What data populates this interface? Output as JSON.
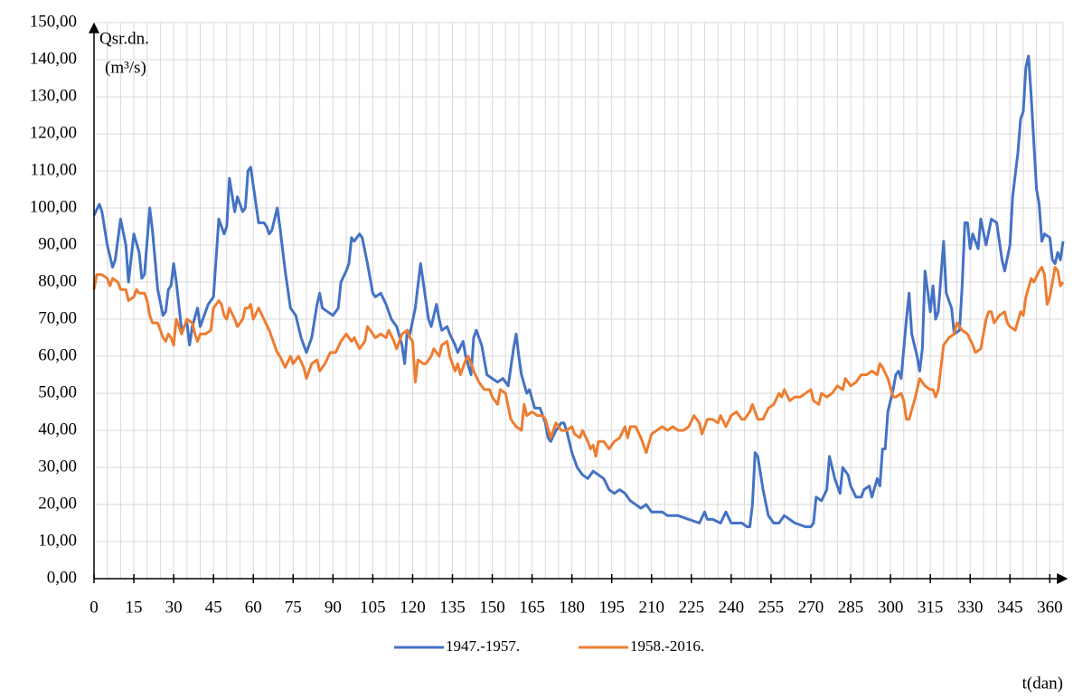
{
  "chart_data": {
    "type": "line",
    "y_label": "Qsr.dn.",
    "y_unit": "(m³/s)",
    "x_label": "t(dan)",
    "xlim": [
      0,
      365
    ],
    "ylim": [
      0,
      150
    ],
    "xticks": [
      0,
      15,
      30,
      45,
      60,
      75,
      90,
      105,
      120,
      135,
      150,
      165,
      180,
      195,
      210,
      225,
      240,
      255,
      270,
      285,
      300,
      315,
      330,
      345,
      360
    ],
    "xgrid": [
      5,
      10,
      15,
      20,
      25,
      30,
      35,
      40,
      45,
      50,
      55,
      60,
      65,
      70,
      75,
      80,
      85,
      90,
      95,
      100,
      105,
      110,
      115,
      120,
      125,
      130,
      135,
      140,
      145,
      150,
      155,
      160,
      165,
      170,
      175,
      180,
      185,
      190,
      195,
      200,
      205,
      210,
      215,
      220,
      225,
      230,
      235,
      240,
      245,
      250,
      255,
      260,
      265,
      270,
      275,
      280,
      285,
      290,
      295,
      300,
      305,
      310,
      315,
      320,
      325,
      330,
      335,
      340,
      345,
      350,
      355,
      360,
      365
    ],
    "yticks": [
      {
        "value": 0,
        "label": "0,00"
      },
      {
        "value": 10,
        "label": "10,00"
      },
      {
        "value": 20,
        "label": "20,00"
      },
      {
        "value": 30,
        "label": "30,00"
      },
      {
        "value": 40,
        "label": "40,00"
      },
      {
        "value": 50,
        "label": "50,00"
      },
      {
        "value": 60,
        "label": "60,00"
      },
      {
        "value": 70,
        "label": "70,00"
      },
      {
        "value": 80,
        "label": "80,00"
      },
      {
        "value": 90,
        "label": "90,00"
      },
      {
        "value": 100,
        "label": "100,00"
      },
      {
        "value": 110,
        "label": "110,00"
      },
      {
        "value": 120,
        "label": "120,00"
      },
      {
        "value": 130,
        "label": "130,00"
      },
      {
        "value": 140,
        "label": "140,00"
      },
      {
        "value": 150,
        "label": "150,00"
      }
    ],
    "grid": true,
    "legend": "bottom",
    "series": [
      {
        "name": "1947.-1957.",
        "color": "#4472c4",
        "x": [
          0,
          2,
          3,
          5,
          7,
          8,
          10,
          12,
          13,
          15,
          17,
          18,
          19,
          21,
          22,
          24,
          26,
          27,
          28,
          29,
          30,
          31,
          33,
          35,
          36,
          37,
          39,
          40,
          41,
          43,
          45,
          47,
          49,
          50,
          51,
          53,
          54,
          56,
          57,
          58,
          59,
          60,
          62,
          64,
          65,
          66,
          67,
          69,
          70,
          72,
          74,
          76,
          78,
          80,
          82,
          84,
          85,
          86,
          88,
          90,
          92,
          93,
          95,
          96,
          97,
          98,
          100,
          101,
          103,
          105,
          106,
          108,
          110,
          112,
          114,
          116,
          117,
          118,
          119,
          121,
          123,
          125,
          126,
          127,
          129,
          130,
          131,
          133,
          134,
          136,
          137,
          139,
          140,
          142,
          143,
          144,
          146,
          148,
          150,
          152,
          154,
          156,
          158,
          159,
          160,
          161,
          163,
          164,
          166,
          168,
          170,
          171,
          172,
          174,
          176,
          177,
          178,
          180,
          182,
          184,
          186,
          188,
          190,
          192,
          194,
          196,
          198,
          200,
          202,
          204,
          206,
          208,
          210,
          214,
          216,
          220,
          224,
          228,
          230,
          231,
          233,
          236,
          238,
          240,
          244,
          246,
          247,
          248,
          249,
          250,
          252,
          254,
          256,
          258,
          260,
          262,
          264,
          268,
          270,
          271,
          272,
          274,
          276,
          277,
          279,
          281,
          282,
          284,
          285,
          287,
          289,
          290,
          292,
          293,
          295,
          296,
          297,
          298,
          299,
          301,
          302,
          303,
          304,
          306,
          307,
          308,
          310,
          311,
          312,
          313,
          315,
          316,
          317,
          318,
          320,
          321,
          323,
          324,
          326,
          327,
          328,
          329,
          330,
          331,
          333,
          334,
          336,
          338,
          340,
          342,
          343,
          345,
          346,
          348,
          349,
          350,
          351,
          352,
          353,
          355,
          356,
          357,
          358,
          360,
          361,
          362,
          363,
          364,
          365
        ],
        "values": [
          98,
          101,
          99,
          90,
          84,
          86,
          97,
          90,
          80,
          93,
          88,
          81,
          82,
          100,
          94,
          78,
          71,
          72,
          78,
          79,
          85,
          80,
          67,
          69,
          63,
          68,
          73,
          68,
          70,
          74,
          76,
          97,
          93,
          95,
          108,
          99,
          103,
          99,
          100,
          110,
          111,
          106,
          96,
          96,
          95,
          93,
          94,
          100,
          95,
          83,
          73,
          71,
          65,
          61,
          65,
          74,
          77,
          73,
          72,
          71,
          73,
          80,
          83,
          85,
          92,
          91,
          93,
          92,
          85,
          77,
          76,
          77,
          74,
          70,
          68,
          63,
          58,
          67,
          66,
          73,
          85,
          75,
          70,
          68,
          74,
          70,
          67,
          68,
          66,
          63,
          61,
          64,
          60,
          55,
          65,
          67,
          63,
          55,
          54,
          53,
          54,
          52,
          62,
          66,
          60,
          55,
          50,
          51,
          46,
          46,
          42,
          38,
          37,
          40,
          42,
          42,
          40,
          34,
          30,
          28,
          27,
          29,
          28,
          27,
          24,
          23,
          24,
          23,
          21,
          20,
          19,
          20,
          18,
          18,
          17,
          17,
          16,
          15,
          18,
          16,
          16,
          15,
          18,
          15,
          15,
          14,
          14,
          20,
          34,
          33,
          24,
          17,
          15,
          15,
          17,
          16,
          15,
          14,
          14,
          15,
          22,
          21,
          24,
          33,
          27,
          23,
          30,
          28,
          25,
          22,
          22,
          24,
          25,
          22,
          27,
          25,
          35,
          35,
          45,
          51,
          55,
          56,
          54,
          70,
          77,
          66,
          60,
          56,
          62,
          83,
          72,
          79,
          70,
          72,
          91,
          77,
          73,
          66,
          67,
          79,
          96,
          96,
          89,
          93,
          89,
          97,
          90,
          97,
          96,
          86,
          83,
          90,
          103,
          115,
          124,
          126,
          138,
          141,
          130,
          105,
          101,
          91,
          93,
          92,
          86,
          85,
          88,
          86,
          91
        ]
      },
      {
        "name": "1958.-2016.",
        "color": "#ed7d31",
        "x": [
          0,
          1,
          3,
          5,
          6,
          7,
          9,
          10,
          12,
          13,
          15,
          16,
          17,
          19,
          20,
          21,
          22,
          24,
          25,
          26,
          27,
          28,
          29,
          30,
          31,
          32,
          33,
          35,
          37,
          38,
          39,
          40,
          42,
          44,
          45,
          47,
          48,
          49,
          50,
          51,
          53,
          54,
          56,
          57,
          58,
          59,
          60,
          62,
          64,
          66,
          67,
          69,
          70,
          72,
          74,
          75,
          77,
          79,
          80,
          82,
          84,
          85,
          87,
          89,
          91,
          93,
          95,
          97,
          98,
          100,
          102,
          103,
          104,
          106,
          108,
          110,
          111,
          113,
          114,
          116,
          118,
          119,
          120,
          121,
          122,
          124,
          125,
          127,
          128,
          130,
          131,
          133,
          134,
          135,
          136,
          137,
          138,
          140,
          141,
          143,
          145,
          147,
          149,
          150,
          152,
          153,
          155,
          157,
          159,
          161,
          162,
          163,
          165,
          167,
          169,
          170,
          172,
          174,
          176,
          178,
          180,
          181,
          183,
          184,
          186,
          187,
          188,
          189,
          190,
          192,
          194,
          196,
          198,
          200,
          201,
          202,
          204,
          206,
          207,
          208,
          210,
          212,
          214,
          216,
          218,
          220,
          222,
          224,
          226,
          228,
          229,
          231,
          233,
          235,
          236,
          238,
          240,
          242,
          244,
          245,
          247,
          248,
          250,
          252,
          254,
          256,
          258,
          259,
          260,
          262,
          264,
          266,
          268,
          270,
          271,
          273,
          274,
          276,
          278,
          280,
          282,
          283,
          285,
          287,
          289,
          291,
          293,
          295,
          296,
          297,
          299,
          301,
          302,
          304,
          305,
          306,
          307,
          309,
          311,
          313,
          315,
          316,
          317,
          318,
          320,
          322,
          324,
          325,
          327,
          329,
          331,
          332,
          334,
          336,
          337,
          338,
          339,
          341,
          343,
          344,
          345,
          347,
          349,
          350,
          351,
          353,
          354,
          356,
          357,
          358,
          359,
          360,
          362,
          363,
          364,
          365
        ],
        "values": [
          78,
          82,
          82,
          81,
          79,
          81,
          80,
          78,
          78,
          75,
          76,
          78,
          77,
          77,
          75,
          71,
          69,
          69,
          67,
          65,
          64,
          66,
          65,
          63,
          70,
          68,
          66,
          70,
          69,
          66,
          64,
          66,
          66,
          67,
          73,
          75,
          74,
          71,
          70,
          73,
          70,
          68,
          70,
          73,
          73,
          74,
          70,
          73,
          70,
          67,
          65,
          61,
          60,
          57,
          60,
          58,
          60,
          57,
          54,
          58,
          59,
          56,
          58,
          61,
          61,
          64,
          66,
          64,
          65,
          62,
          64,
          68,
          67,
          65,
          66,
          65,
          67,
          64,
          62,
          66,
          67,
          65,
          64,
          53,
          59,
          58,
          58,
          60,
          62,
          60,
          63,
          64,
          60,
          58,
          56,
          58,
          55,
          59,
          60,
          56,
          53,
          51,
          51,
          49,
          47,
          51,
          50,
          43,
          41,
          40,
          47,
          44,
          45,
          44,
          44,
          43,
          38,
          42,
          40,
          40,
          41,
          39,
          38,
          40,
          37,
          35,
          36,
          33,
          37,
          37,
          35,
          37,
          38,
          41,
          38,
          41,
          41,
          38,
          36,
          34,
          39,
          40,
          41,
          40,
          41,
          40,
          40,
          41,
          44,
          42,
          39,
          43,
          43,
          42,
          44,
          41,
          44,
          45,
          43,
          43,
          45,
          47,
          43,
          43,
          46,
          47,
          50,
          49,
          51,
          48,
          49,
          49,
          50,
          51,
          48,
          47,
          50,
          49,
          50,
          52,
          51,
          54,
          52,
          53,
          55,
          55,
          56,
          55,
          58,
          57,
          54,
          49,
          49,
          50,
          48,
          43,
          43,
          48,
          54,
          52,
          51,
          51,
          49,
          51,
          63,
          65,
          66,
          69,
          67,
          66,
          63,
          61,
          62,
          70,
          72,
          72,
          69,
          71,
          72,
          69,
          68,
          67,
          72,
          71,
          76,
          81,
          80,
          83,
          84,
          82,
          74,
          76,
          84,
          83,
          79,
          80
        ]
      }
    ]
  }
}
